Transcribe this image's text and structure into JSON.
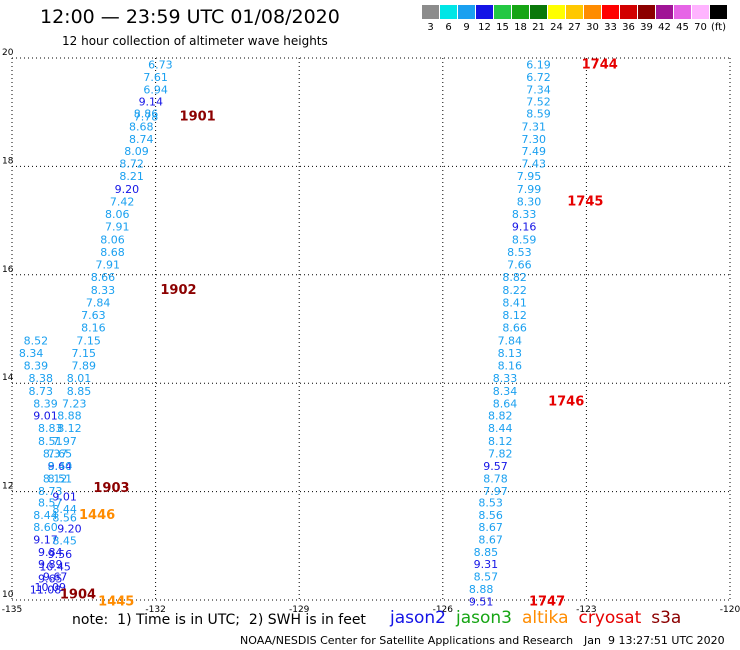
{
  "header": {
    "title": "12:00 — 23:59 UTC 01/08/2020",
    "subtitle": "12 hour collection of altimeter wave heights"
  },
  "legend": {
    "bins": [
      {
        "label": "3",
        "color": "#8c8c8c"
      },
      {
        "label": "6",
        "color": "#00e6e6"
      },
      {
        "label": "9",
        "color": "#1aa0f0"
      },
      {
        "label": "12",
        "color": "#1414e6"
      },
      {
        "label": "15",
        "color": "#23c843"
      },
      {
        "label": "18",
        "color": "#16a514"
      },
      {
        "label": "21",
        "color": "#0a780a"
      },
      {
        "label": "24",
        "color": "#ffff00"
      },
      {
        "label": "27",
        "color": "#ffc800"
      },
      {
        "label": "30",
        "color": "#ff8c00"
      },
      {
        "label": "33",
        "color": "#ff0000"
      },
      {
        "label": "36",
        "color": "#d20000"
      },
      {
        "label": "39",
        "color": "#8c0000"
      },
      {
        "label": "42",
        "color": "#a01496"
      },
      {
        "label": "45",
        "color": "#e664e6"
      },
      {
        "label": "70",
        "color": "#ffb4ff"
      },
      {
        "label": "(ft)",
        "color": "#000000"
      }
    ]
  },
  "chart_data": {
    "type": "scatter",
    "xlim": [
      -135,
      -120
    ],
    "ylim": [
      10,
      20
    ],
    "xticks": [
      "-135",
      "-132",
      "-129",
      "-126",
      "-123",
      "-120"
    ],
    "yticks": [
      "10",
      "12",
      "14",
      "16",
      "18",
      "20"
    ],
    "grid": true,
    "colors": {
      "light": "#1aa0f0",
      "dark": "#1414e6",
      "orange": "#ff8c00",
      "red": "#e60000",
      "maroon": "#8c0000"
    },
    "series": [
      {
        "name": "track-west",
        "points": [
          {
            "x": -131.9,
            "y": 19.88,
            "v": "6.73",
            "c": "light"
          },
          {
            "x": -132.0,
            "y": 19.65,
            "v": "7.61",
            "c": "light"
          },
          {
            "x": -132.0,
            "y": 19.42,
            "v": "6.94",
            "c": "light"
          },
          {
            "x": -132.1,
            "y": 19.2,
            "v": "9.14",
            "c": "dark"
          },
          {
            "x": -132.2,
            "y": 18.98,
            "v": "8.86",
            "c": "light"
          },
          {
            "x": -132.2,
            "y": 18.92,
            "v": "7.78",
            "c": "light"
          },
          {
            "x": -132.3,
            "y": 18.74,
            "v": "8.68",
            "c": "light"
          },
          {
            "x": -132.3,
            "y": 18.51,
            "v": "8.74",
            "c": "light"
          },
          {
            "x": -132.4,
            "y": 18.28,
            "v": "8.09",
            "c": "light"
          },
          {
            "x": -132.5,
            "y": 18.05,
            "v": "8.72",
            "c": "light"
          },
          {
            "x": -132.5,
            "y": 17.82,
            "v": "8.21",
            "c": "light"
          },
          {
            "x": -132.6,
            "y": 17.58,
            "v": "9.20",
            "c": "dark"
          },
          {
            "x": -132.7,
            "y": 17.35,
            "v": "7.42",
            "c": "light"
          },
          {
            "x": -132.8,
            "y": 17.12,
            "v": "8.06",
            "c": "light"
          },
          {
            "x": -132.8,
            "y": 16.89,
            "v": "7.91",
            "c": "light"
          },
          {
            "x": -132.9,
            "y": 16.65,
            "v": "8.06",
            "c": "light"
          },
          {
            "x": -132.9,
            "y": 16.42,
            "v": "8.68",
            "c": "light"
          },
          {
            "x": -133.0,
            "y": 16.19,
            "v": "7.91",
            "c": "light"
          },
          {
            "x": -133.1,
            "y": 15.96,
            "v": "8.66",
            "c": "light"
          },
          {
            "x": -133.1,
            "y": 15.72,
            "v": "8.33",
            "c": "light"
          },
          {
            "x": -133.2,
            "y": 15.49,
            "v": "7.84",
            "c": "light"
          },
          {
            "x": -133.3,
            "y": 15.26,
            "v": "7.63",
            "c": "light"
          },
          {
            "x": -133.3,
            "y": 15.03,
            "v": "8.16",
            "c": "light"
          },
          {
            "x": -133.4,
            "y": 14.79,
            "v": "7.15",
            "c": "light"
          },
          {
            "x": -133.5,
            "y": 14.56,
            "v": "7.15",
            "c": "light"
          },
          {
            "x": -133.5,
            "y": 14.33,
            "v": "7.89",
            "c": "light"
          },
          {
            "x": -133.6,
            "y": 14.1,
            "v": "8.01",
            "c": "light"
          },
          {
            "x": -133.6,
            "y": 13.86,
            "v": "8.85",
            "c": "light"
          },
          {
            "x": -133.7,
            "y": 13.63,
            "v": "7.23",
            "c": "light"
          },
          {
            "x": -133.8,
            "y": 13.4,
            "v": "8.88",
            "c": "light"
          },
          {
            "x": -133.8,
            "y": 13.17,
            "v": "8.12",
            "c": "light"
          },
          {
            "x": -133.9,
            "y": 12.93,
            "v": "7.97",
            "c": "light"
          },
          {
            "x": -134.0,
            "y": 12.7,
            "v": "7.65",
            "c": "light"
          },
          {
            "x": -134.0,
            "y": 12.47,
            "v": "9.64",
            "c": "dark"
          },
          {
            "x": -134.1,
            "y": 12.24,
            "v": "8.12",
            "c": "light"
          },
          {
            "x": -134.2,
            "y": 12.01,
            "v": "8.73",
            "c": "light"
          },
          {
            "x": -134.2,
            "y": 11.8,
            "v": "8.57",
            "c": "light"
          },
          {
            "x": -134.3,
            "y": 11.57,
            "v": "8.44",
            "c": "light"
          },
          {
            "x": -134.3,
            "y": 11.35,
            "v": "8.60",
            "c": "light"
          },
          {
            "x": -134.3,
            "y": 11.12,
            "v": "9.17",
            "c": "dark"
          },
          {
            "x": -134.2,
            "y": 10.89,
            "v": "9.84",
            "c": "dark"
          },
          {
            "x": -134.2,
            "y": 10.66,
            "v": "9.89",
            "c": "dark"
          },
          {
            "x": -134.1,
            "y": 10.43,
            "v": "9.67",
            "c": "dark"
          },
          {
            "x": -134.2,
            "y": 10.24,
            "v": "10.09",
            "c": "dark"
          }
        ]
      },
      {
        "name": "track-far-west",
        "points": [
          {
            "x": -134.5,
            "y": 14.79,
            "v": "8.52",
            "c": "light"
          },
          {
            "x": -134.6,
            "y": 14.56,
            "v": "8.34",
            "c": "light"
          },
          {
            "x": -134.5,
            "y": 14.33,
            "v": "8.39",
            "c": "light"
          },
          {
            "x": -134.4,
            "y": 14.1,
            "v": "8.38",
            "c": "light"
          },
          {
            "x": -134.4,
            "y": 13.86,
            "v": "8.73",
            "c": "light"
          },
          {
            "x": -134.3,
            "y": 13.63,
            "v": "8.39",
            "c": "light"
          },
          {
            "x": -134.3,
            "y": 13.4,
            "v": "9.01",
            "c": "dark"
          },
          {
            "x": -134.2,
            "y": 13.17,
            "v": "8.83",
            "c": "light"
          },
          {
            "x": -134.2,
            "y": 12.93,
            "v": "8.51",
            "c": "light"
          },
          {
            "x": -134.1,
            "y": 12.7,
            "v": "8.37",
            "c": "light"
          },
          {
            "x": -134.0,
            "y": 12.47,
            "v": "8.40",
            "c": "light"
          },
          {
            "x": -134.0,
            "y": 12.24,
            "v": "8.51",
            "c": "light"
          },
          {
            "x": -133.9,
            "y": 11.91,
            "v": "9.01",
            "c": "dark"
          },
          {
            "x": -133.9,
            "y": 11.68,
            "v": "8.44",
            "c": "light"
          },
          {
            "x": -133.9,
            "y": 11.52,
            "v": "8.56",
            "c": "light"
          },
          {
            "x": -133.8,
            "y": 11.32,
            "v": "9.20",
            "c": "dark"
          },
          {
            "x": -133.9,
            "y": 11.1,
            "v": "8.45",
            "c": "light"
          },
          {
            "x": -134.0,
            "y": 10.85,
            "v": "9.56",
            "c": "dark"
          },
          {
            "x": -134.1,
            "y": 10.62,
            "v": "10.45",
            "c": "dark"
          },
          {
            "x": -134.2,
            "y": 10.4,
            "v": "9.65",
            "c": "dark"
          },
          {
            "x": -134.3,
            "y": 10.19,
            "v": "11.08",
            "c": "dark"
          }
        ]
      },
      {
        "name": "track-east",
        "points": [
          {
            "x": -124.0,
            "y": 19.88,
            "v": "6.19",
            "c": "light"
          },
          {
            "x": -124.0,
            "y": 19.65,
            "v": "6.72",
            "c": "light"
          },
          {
            "x": -124.0,
            "y": 19.42,
            "v": "7.34",
            "c": "light"
          },
          {
            "x": -124.0,
            "y": 19.2,
            "v": "7.52",
            "c": "light"
          },
          {
            "x": -124.0,
            "y": 18.98,
            "v": "8.59",
            "c": "light"
          },
          {
            "x": -124.1,
            "y": 18.74,
            "v": "7.31",
            "c": "light"
          },
          {
            "x": -124.1,
            "y": 18.51,
            "v": "7.30",
            "c": "light"
          },
          {
            "x": -124.1,
            "y": 18.28,
            "v": "7.49",
            "c": "light"
          },
          {
            "x": -124.1,
            "y": 18.05,
            "v": "7.43",
            "c": "light"
          },
          {
            "x": -124.2,
            "y": 17.82,
            "v": "7.95",
            "c": "light"
          },
          {
            "x": -124.2,
            "y": 17.58,
            "v": "7.99",
            "c": "light"
          },
          {
            "x": -124.2,
            "y": 17.35,
            "v": "8.30",
            "c": "light"
          },
          {
            "x": -124.3,
            "y": 17.12,
            "v": "8.33",
            "c": "light"
          },
          {
            "x": -124.3,
            "y": 16.89,
            "v": "9.16",
            "c": "dark"
          },
          {
            "x": -124.3,
            "y": 16.65,
            "v": "8.59",
            "c": "light"
          },
          {
            "x": -124.4,
            "y": 16.42,
            "v": "8.53",
            "c": "light"
          },
          {
            "x": -124.4,
            "y": 16.19,
            "v": "7.66",
            "c": "light"
          },
          {
            "x": -124.5,
            "y": 15.96,
            "v": "8.82",
            "c": "light"
          },
          {
            "x": -124.5,
            "y": 15.72,
            "v": "8.22",
            "c": "light"
          },
          {
            "x": -124.5,
            "y": 15.49,
            "v": "8.41",
            "c": "light"
          },
          {
            "x": -124.5,
            "y": 15.26,
            "v": "8.12",
            "c": "light"
          },
          {
            "x": -124.5,
            "y": 15.03,
            "v": "8.66",
            "c": "light"
          },
          {
            "x": -124.6,
            "y": 14.79,
            "v": "7.84",
            "c": "light"
          },
          {
            "x": -124.6,
            "y": 14.56,
            "v": "8.13",
            "c": "light"
          },
          {
            "x": -124.6,
            "y": 14.33,
            "v": "8.16",
            "c": "light"
          },
          {
            "x": -124.7,
            "y": 14.1,
            "v": "8.33",
            "c": "light"
          },
          {
            "x": -124.7,
            "y": 13.86,
            "v": "8.34",
            "c": "light"
          },
          {
            "x": -124.7,
            "y": 13.63,
            "v": "8.64",
            "c": "light"
          },
          {
            "x": -124.8,
            "y": 13.4,
            "v": "8.82",
            "c": "light"
          },
          {
            "x": -124.8,
            "y": 13.17,
            "v": "8.44",
            "c": "light"
          },
          {
            "x": -124.8,
            "y": 12.93,
            "v": "8.12",
            "c": "light"
          },
          {
            "x": -124.8,
            "y": 12.7,
            "v": "7.82",
            "c": "light"
          },
          {
            "x": -124.9,
            "y": 12.47,
            "v": "9.57",
            "c": "dark"
          },
          {
            "x": -124.9,
            "y": 12.24,
            "v": "8.78",
            "c": "light"
          },
          {
            "x": -124.9,
            "y": 12.01,
            "v": "7.97",
            "c": "light"
          },
          {
            "x": -125.0,
            "y": 11.8,
            "v": "8.53",
            "c": "light"
          },
          {
            "x": -125.0,
            "y": 11.57,
            "v": "8.56",
            "c": "light"
          },
          {
            "x": -125.0,
            "y": 11.35,
            "v": "8.67",
            "c": "light"
          },
          {
            "x": -125.0,
            "y": 11.12,
            "v": "8.67",
            "c": "light"
          },
          {
            "x": -125.1,
            "y": 10.89,
            "v": "8.85",
            "c": "light"
          },
          {
            "x": -125.1,
            "y": 10.66,
            "v": "9.31",
            "c": "dark"
          },
          {
            "x": -125.1,
            "y": 10.43,
            "v": "8.57",
            "c": "light"
          },
          {
            "x": -125.2,
            "y": 10.2,
            "v": "8.88",
            "c": "light"
          },
          {
            "x": -125.2,
            "y": 9.97,
            "v": "9.51",
            "c": "dark"
          }
        ]
      }
    ],
    "annotations": [
      {
        "x": -131.5,
        "y": 18.92,
        "text": "1901",
        "c": "maroon"
      },
      {
        "x": -131.9,
        "y": 15.72,
        "text": "1902",
        "c": "maroon"
      },
      {
        "x": -133.3,
        "y": 12.07,
        "text": "1903",
        "c": "maroon"
      },
      {
        "x": -133.6,
        "y": 11.57,
        "text": "1446",
        "c": "orange"
      },
      {
        "x": -134.0,
        "y": 10.1,
        "text": "1904",
        "c": "maroon"
      },
      {
        "x": -133.2,
        "y": 9.97,
        "text": "1445",
        "c": "orange"
      },
      {
        "x": -123.1,
        "y": 19.88,
        "text": "1744",
        "c": "red"
      },
      {
        "x": -123.4,
        "y": 17.35,
        "text": "1745",
        "c": "red"
      },
      {
        "x": -123.8,
        "y": 13.66,
        "text": "1746",
        "c": "red"
      },
      {
        "x": -124.2,
        "y": 9.97,
        "text": "1747",
        "c": "red"
      }
    ]
  },
  "footer": {
    "note": "note:  1) Time is in UTC;  2) SWH is in feet",
    "satellites": [
      {
        "label": "jason2",
        "color": "#1414e6"
      },
      {
        "label": "jason3",
        "color": "#16a514"
      },
      {
        "label": "altika",
        "color": "#ff8c00"
      },
      {
        "label": "cryosat",
        "color": "#e60000"
      },
      {
        "label": "s3a",
        "color": "#8c0000"
      }
    ],
    "credit": "NOAA/NESDIS Center for Satellite Applications and Research",
    "timestamp": "Jan  9 13:27:51 UTC 2020"
  }
}
